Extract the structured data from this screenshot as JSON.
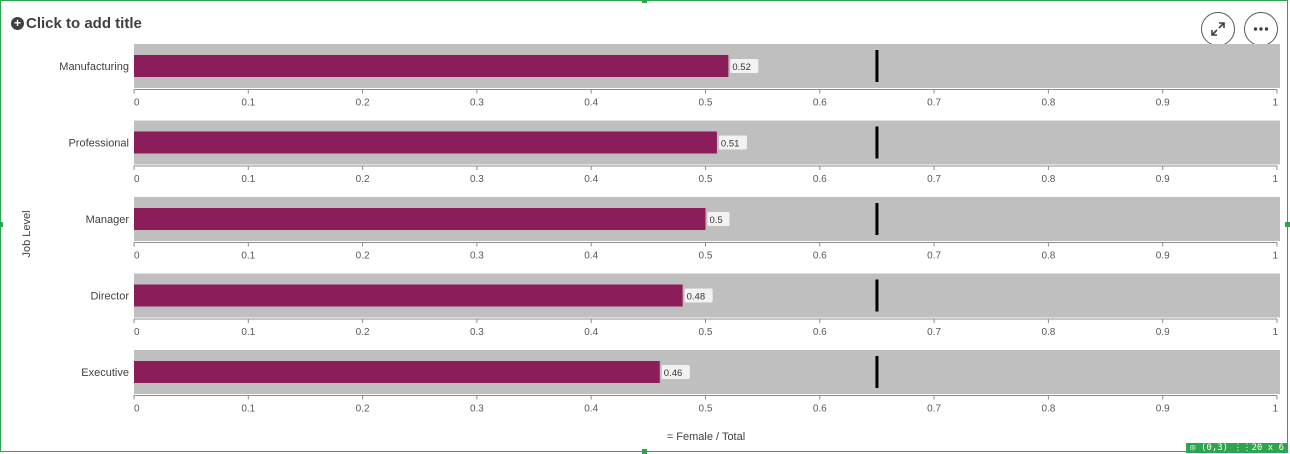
{
  "header": {
    "title": "Click to add title",
    "expand_icon": "expand-icon",
    "menu_icon": "more-options-icon"
  },
  "status": {
    "badge": "◎ (0,3)  ⋮⋮20 x 6"
  },
  "chart_data": {
    "type": "bar",
    "orientation": "horizontal",
    "categories": [
      "Manufacturing",
      "Professional",
      "Manager",
      "Director",
      "Executive"
    ],
    "values": [
      0.52,
      0.51,
      0.5,
      0.48,
      0.46
    ],
    "value_labels": [
      "0.52",
      "0.51",
      "0.5",
      "0.48",
      "0.46"
    ],
    "target": 0.65,
    "xlim": [
      0,
      1
    ],
    "ticks": [
      0,
      0.1,
      0.2,
      0.3,
      0.4,
      0.5,
      0.6,
      0.7,
      0.8,
      0.9,
      1
    ],
    "tick_labels": [
      "0",
      "0.1",
      "0.2",
      "0.3",
      "0.4",
      "0.5",
      "0.6",
      "0.7",
      "0.8",
      "0.9",
      "1"
    ],
    "ylabel": "Job Level",
    "xlabel": "= Female / Total",
    "colors": {
      "bar": "#8b1d5b",
      "background": "#bfbfbf",
      "target": "#000000",
      "axis": "#8c8c8c",
      "label_box": "#f2f2f2"
    }
  }
}
